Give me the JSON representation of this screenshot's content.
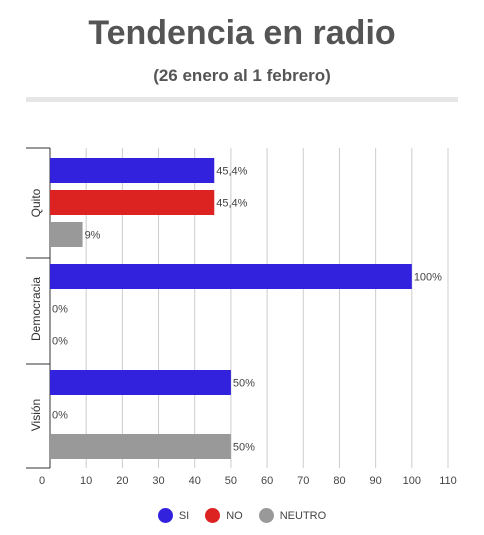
{
  "chart_data": {
    "type": "bar",
    "orientation": "horizontal",
    "title": "Tendencia en radio",
    "subtitle": "(26 enero al 1 febrero)",
    "categories": [
      "Quito",
      "Democracia",
      "Visión"
    ],
    "series": [
      {
        "name": "SI",
        "color": "#3322dd",
        "values": [
          45.4,
          100,
          50
        ],
        "labels": [
          "45,4%",
          "100%",
          "50%"
        ]
      },
      {
        "name": "NO",
        "color": "#dd2222",
        "values": [
          45.4,
          0,
          0
        ],
        "labels": [
          "45,4%",
          "0%",
          "0%"
        ]
      },
      {
        "name": "NEUTRO",
        "color": "#999999",
        "values": [
          9,
          0,
          50
        ],
        "labels": [
          "9%",
          "0%",
          "50%"
        ]
      }
    ],
    "xlim": [
      0,
      110
    ],
    "xticks": [
      0,
      10,
      20,
      30,
      40,
      50,
      60,
      70,
      80,
      90,
      100,
      110
    ],
    "grid": true,
    "legend_position": "bottom"
  }
}
